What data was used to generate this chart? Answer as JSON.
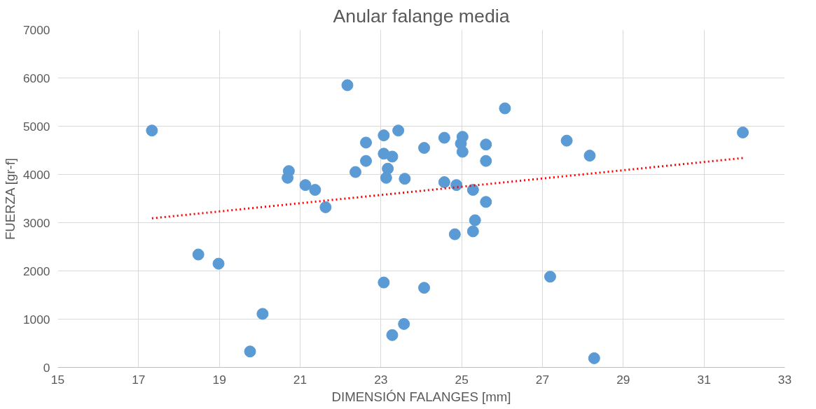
{
  "chart_data": {
    "type": "scatter",
    "title": "Anular falange media",
    "xlabel": "DIMENSIÓN FALANGES [mm]",
    "ylabel": "FUERZA [gr-f]",
    "xlim": [
      15,
      33
    ],
    "xticks": [
      15,
      17,
      19,
      21,
      23,
      25,
      27,
      29,
      31,
      33
    ],
    "ylim": [
      0,
      7000
    ],
    "yticks": [
      0,
      1000,
      2000,
      3000,
      4000,
      5000,
      6000,
      7000
    ],
    "grid": true,
    "marker": "circle",
    "series": [
      {
        "color": "#5b9bd5",
        "x": [
          17.33,
          18.48,
          18.98,
          19.76,
          20.07,
          20.69,
          20.72,
          21.13,
          21.37,
          21.63,
          22.17,
          22.37,
          22.63,
          22.63,
          23.07,
          23.07,
          23.13,
          23.17,
          23.28,
          23.07,
          23.28,
          23.43,
          23.59,
          23.57,
          24.07,
          24.07,
          24.57,
          24.57,
          24.87,
          24.83,
          25.02,
          24.98,
          25.02,
          25.28,
          25.33,
          25.28,
          25.6,
          25.6,
          25.6,
          26.07,
          27.19,
          27.6,
          28.17,
          28.28,
          31.96
        ],
        "values": [
          4910,
          2340,
          2150,
          330,
          1110,
          3930,
          4070,
          3780,
          3680,
          3320,
          5850,
          4050,
          4660,
          4280,
          4810,
          4430,
          3930,
          4120,
          4370,
          1760,
          670,
          4910,
          3910,
          900,
          4550,
          1650,
          4760,
          3840,
          3780,
          2760,
          4780,
          4640,
          4470,
          3680,
          3050,
          2820,
          4620,
          4280,
          3430,
          5370,
          1880,
          4700,
          4390,
          190,
          4870
        ]
      },
      {
        "type": "line",
        "color": "#ff0000",
        "line_style": "dotted",
        "marker": "none",
        "x": [
          17.33,
          31.96
        ],
        "values": [
          3090,
          4340
        ]
      }
    ]
  }
}
